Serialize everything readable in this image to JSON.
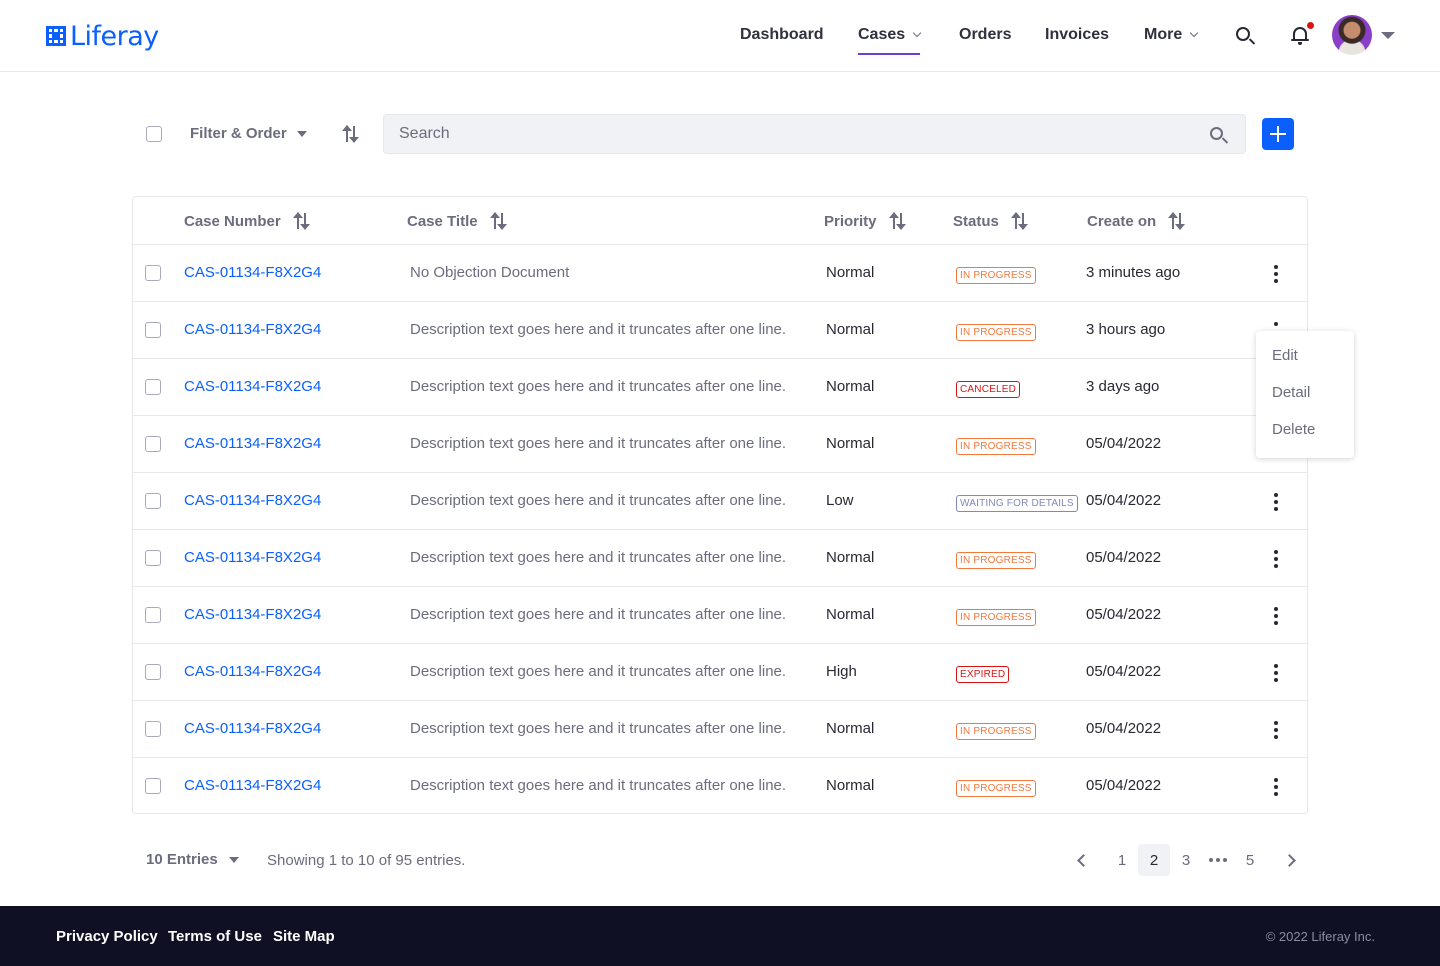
{
  "brand": {
    "name": "Liferay",
    "color": "#0b5fff"
  },
  "nav": {
    "items": [
      {
        "label": "Dashboard",
        "has_chevron": false,
        "active": false
      },
      {
        "label": "Cases",
        "has_chevron": true,
        "active": true
      },
      {
        "label": "Orders",
        "has_chevron": false,
        "active": false
      },
      {
        "label": "Invoices",
        "has_chevron": false,
        "active": false
      },
      {
        "label": "More",
        "has_chevron": true,
        "active": false
      }
    ],
    "icons": [
      "search-icon",
      "bell-icon",
      "avatar",
      "caret-down-icon"
    ],
    "notification_dot_color": "#da1414",
    "active_underline_color": "#6b3fd6"
  },
  "toolbar": {
    "filter_label": "Filter & Order",
    "search_placeholder": "Search",
    "add_button_color": "#0b5fff"
  },
  "table": {
    "columns": {
      "case_number": "Case Number",
      "case_title": "Case Title",
      "priority": "Priority",
      "status": "Status",
      "created": "Create on"
    },
    "rows": [
      {
        "case_number": "CAS-01134-F8X2G4",
        "title": "No Objection Document",
        "priority": "Normal",
        "status": "IN PROGRESS",
        "status_color": "#f2783c",
        "created": "3 minutes ago"
      },
      {
        "case_number": "CAS-01134-F8X2G4",
        "title": "Description text goes here and it truncates after one line.",
        "priority": "Normal",
        "status": "IN PROGRESS",
        "status_color": "#f2783c",
        "created": "3 hours ago"
      },
      {
        "case_number": "CAS-01134-F8X2G4",
        "title": "Description text goes here and it truncates after one line.",
        "priority": "Normal",
        "status": "CANCELED",
        "status_color": "#da1414",
        "created": " 3 days ago"
      },
      {
        "case_number": "CAS-01134-F8X2G4",
        "title": "Description text goes here and it truncates after one line.",
        "priority": "Normal",
        "status": "IN PROGRESS",
        "status_color": "#f2783c",
        "created": "05/04/2022"
      },
      {
        "case_number": "CAS-01134-F8X2G4",
        "title": "Description text goes here and it truncates after one line.",
        "priority": "Low",
        "status": "WAITING FOR DETAILS",
        "status_color": "#7f8ab8",
        "created": "05/04/2022"
      },
      {
        "case_number": "CAS-01134-F8X2G4",
        "title": "Description text goes here and it truncates after one line.",
        "priority": "Normal",
        "status": "IN PROGRESS",
        "status_color": "#f2783c",
        "created": "05/04/2022"
      },
      {
        "case_number": "CAS-01134-F8X2G4",
        "title": "Description text goes here and it truncates after one line.",
        "priority": "Normal",
        "status": "IN PROGRESS",
        "status_color": "#f2783c",
        "created": "05/04/2022"
      },
      {
        "case_number": "CAS-01134-F8X2G4",
        "title": "Description text goes here and it truncates after one line.",
        "priority": "High",
        "status": "EXPIRED",
        "status_color": "#da1414",
        "created": "05/04/2022"
      },
      {
        "case_number": "CAS-01134-F8X2G4",
        "title": "Description text goes here and it truncates after one line.",
        "priority": "Normal",
        "status": "IN PROGRESS",
        "status_color": "#f2783c",
        "created": "05/04/2022"
      },
      {
        "case_number": "CAS-01134-F8X2G4",
        "title": "Description text goes here and it truncates after one line.",
        "priority": "Normal",
        "status": "IN PROGRESS",
        "status_color": "#f2783c",
        "created": "05/04/2022"
      }
    ]
  },
  "row_menu": {
    "open_on_row": 2,
    "items": [
      "Edit",
      "Detail",
      "Delete"
    ]
  },
  "pagination": {
    "entries_label": "10 Entries",
    "summary": "Showing 1 to 10 of 95 entries.",
    "pages": [
      "1",
      "2",
      "3",
      "5"
    ],
    "current_page": "2"
  },
  "footer": {
    "links": [
      "Privacy Policy",
      "Terms of Use",
      "Site Map"
    ],
    "copyright": "© 2022 Liferay Inc."
  }
}
